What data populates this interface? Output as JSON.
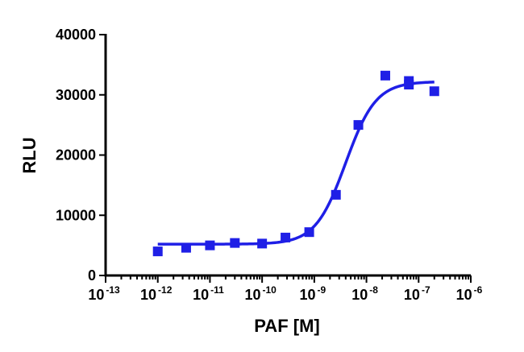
{
  "chart_data": {
    "type": "scatter",
    "title": "",
    "xlabel": "PAF [M]",
    "ylabel": "RLU",
    "x_scale": "log",
    "xlim": [
      1e-13,
      1e-06
    ],
    "ylim": [
      0,
      40000
    ],
    "grid": false,
    "colors": {
      "series": "#1f1fe6"
    },
    "x_ticks": [
      {
        "base": "10",
        "exp": "-13",
        "value": 1e-13
      },
      {
        "base": "10",
        "exp": "-12",
        "value": 1e-12
      },
      {
        "base": "10",
        "exp": "-11",
        "value": 1e-11
      },
      {
        "base": "10",
        "exp": "-10",
        "value": 1e-10
      },
      {
        "base": "10",
        "exp": "-9",
        "value": 1e-09
      },
      {
        "base": "10",
        "exp": "-8",
        "value": 1e-08
      },
      {
        "base": "10",
        "exp": "-7",
        "value": 1e-07
      },
      {
        "base": "10",
        "exp": "-6",
        "value": 1e-06
      }
    ],
    "y_ticks": [
      {
        "label": "0",
        "value": 0
      },
      {
        "label": "10000",
        "value": 10000
      },
      {
        "label": "20000",
        "value": 20000
      },
      {
        "label": "30000",
        "value": 30000
      },
      {
        "label": "40000",
        "value": 40000
      }
    ],
    "series": [
      {
        "marker": "square",
        "points": [
          {
            "x": 1e-12,
            "y": 4000
          },
          {
            "x": 3.5e-12,
            "y": 4600
          },
          {
            "x": 1e-11,
            "y": 5000
          },
          {
            "x": 3e-11,
            "y": 5400
          },
          {
            "x": 1e-10,
            "y": 5300
          },
          {
            "x": 2.8e-10,
            "y": 6300
          },
          {
            "x": 8e-10,
            "y": 7200
          },
          {
            "x": 2.6e-09,
            "y": 13400
          },
          {
            "x": 7e-09,
            "y": 25000
          },
          {
            "x": 2.3e-08,
            "y": 33200
          },
          {
            "x": 6.5e-08,
            "y": 32300
          },
          {
            "x": 6.5e-08,
            "y": 31700
          },
          {
            "x": 2e-07,
            "y": 30600
          }
        ],
        "fit": {
          "model": "four-parameter logistic",
          "bottom": 5200,
          "top": 32200,
          "ec50": 4e-09,
          "hill": 1.5,
          "x_range": [
            1e-12,
            2e-07
          ]
        }
      }
    ]
  }
}
